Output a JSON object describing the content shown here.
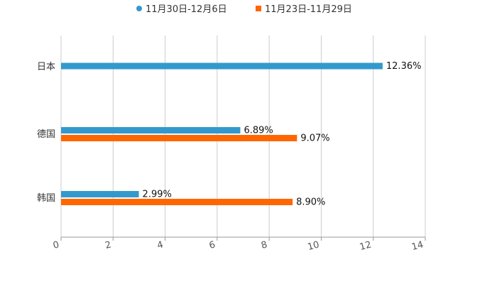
{
  "chart_data": {
    "type": "bar",
    "orientation": "horizontal",
    "title": "",
    "xlabel": "",
    "ylabel": "",
    "categories": [
      "日本",
      "德国",
      "韩国"
    ],
    "series": [
      {
        "name": "11月30日-12月6日",
        "color": "#3399cc",
        "values": [
          12.36,
          6.89,
          2.99
        ],
        "labels": [
          "12.36%",
          "6.89%",
          "2.99%"
        ]
      },
      {
        "name": "11月23日-11月29日",
        "color": "#ff6600",
        "values": [
          null,
          9.07,
          8.9
        ],
        "labels": [
          "",
          "9.07%",
          "8.90%"
        ]
      }
    ],
    "xlim": [
      0,
      14
    ],
    "xticks": [
      0,
      2,
      4,
      6,
      8,
      10,
      12,
      14
    ],
    "xtick_labels": [
      "0",
      "2",
      "4",
      "6",
      "8",
      "10",
      "12",
      "14"
    ],
    "grid": true,
    "legend_position": "top-center",
    "legend_markers": [
      "circle",
      "square"
    ]
  }
}
